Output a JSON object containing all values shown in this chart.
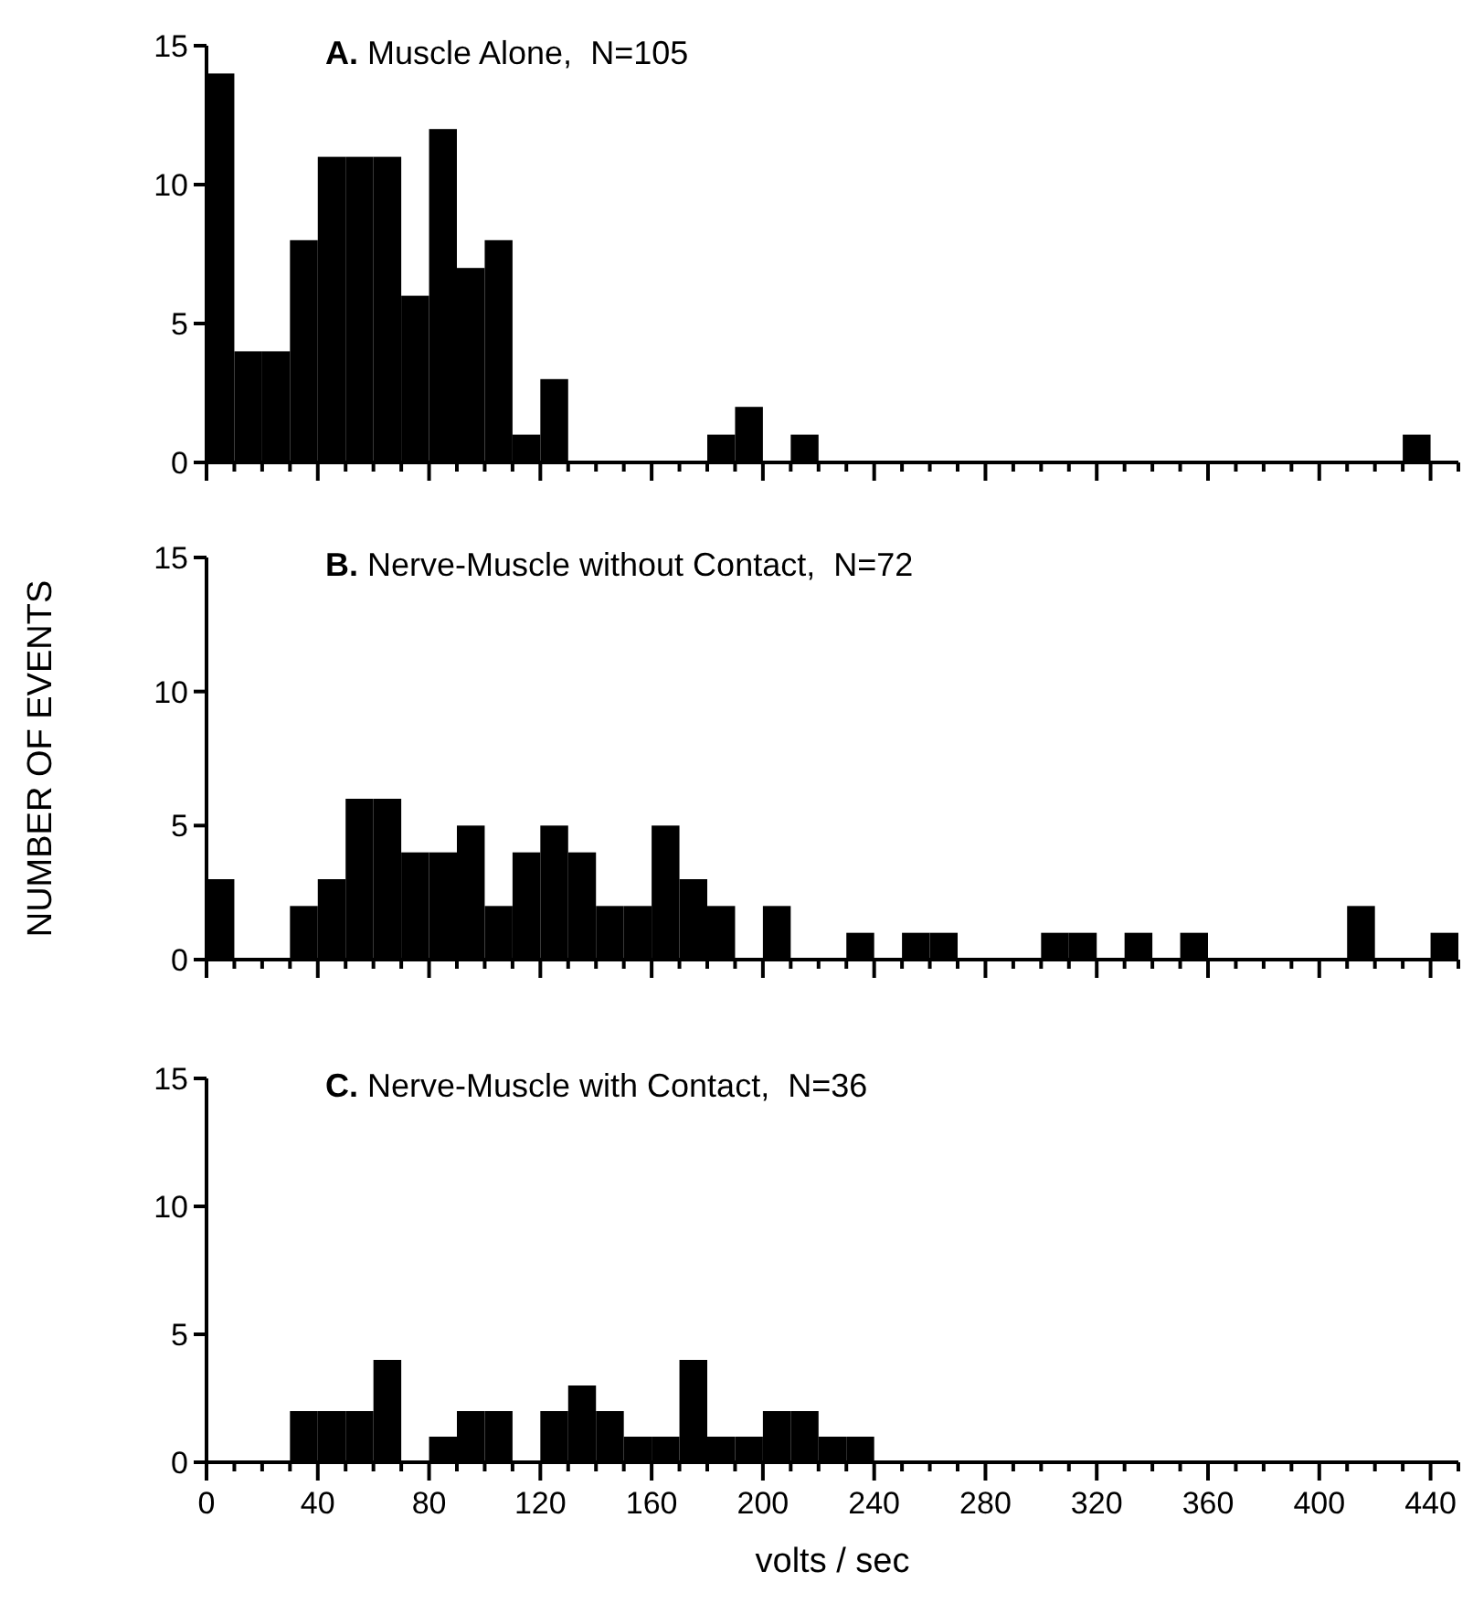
{
  "chart_data": [
    {
      "type": "histogram",
      "title": "A. Muscle Alone,  N=105",
      "color": "#000000",
      "bins": [
        0,
        10,
        20,
        30,
        40,
        50,
        60,
        70,
        80,
        90,
        100,
        110,
        120,
        130,
        140,
        150,
        160,
        170,
        180,
        190,
        200,
        210,
        220,
        230,
        240,
        250,
        260,
        270,
        280,
        290,
        300,
        310,
        320,
        330,
        340,
        350,
        360,
        370,
        380,
        390,
        400,
        410,
        420,
        430,
        440,
        450
      ],
      "values": [
        14,
        4,
        4,
        8,
        11,
        11,
        11,
        6,
        12,
        7,
        8,
        1,
        3,
        0,
        0,
        0,
        0,
        0,
        1,
        2,
        0,
        1,
        0,
        0,
        0,
        0,
        0,
        0,
        0,
        0,
        0,
        0,
        0,
        0,
        0,
        0,
        0,
        0,
        0,
        0,
        0,
        0,
        0,
        1,
        0
      ],
      "xlim": [
        0,
        450
      ],
      "ylim": [
        0,
        15
      ],
      "yticks": [
        0,
        5,
        10,
        15
      ],
      "xticks": [
        0,
        {
          "value": 10,
          "label": null
        },
        {
          "value": 20,
          "label": null
        },
        {
          "value": 30,
          "label": null
        },
        40,
        {
          "value": 50,
          "label": null
        },
        {
          "value": 60,
          "label": null
        },
        {
          "value": 70,
          "label": null
        },
        80,
        {
          "value": 90,
          "label": null
        },
        {
          "value": 100,
          "label": null
        },
        {
          "value": 110,
          "label": null
        },
        120,
        {
          "value": 130,
          "label": null
        },
        {
          "value": 140,
          "label": null
        },
        {
          "value": 150,
          "label": null
        },
        160,
        {
          "value": 170,
          "label": null
        },
        {
          "value": 180,
          "label": null
        },
        {
          "value": 190,
          "label": null
        },
        200,
        {
          "value": 210,
          "label": null
        },
        {
          "value": 220,
          "label": null
        },
        {
          "value": 230,
          "label": null
        },
        240,
        {
          "value": 250,
          "label": null
        },
        {
          "value": 260,
          "label": null
        },
        {
          "value": 270,
          "label": null
        },
        280,
        {
          "value": 290,
          "label": null
        },
        {
          "value": 300,
          "label": null
        },
        {
          "value": 310,
          "label": null
        },
        320,
        {
          "value": 330,
          "label": null
        },
        {
          "value": 340,
          "label": null
        },
        {
          "value": 350,
          "label": null
        },
        360,
        {
          "value": 370,
          "label": null
        },
        {
          "value": 380,
          "label": null
        },
        {
          "value": 390,
          "label": null
        },
        400,
        {
          "value": 410,
          "label": null
        },
        {
          "value": 420,
          "label": null
        },
        {
          "value": 430,
          "label": null
        },
        440,
        {
          "value": 450,
          "label": null
        }
      ],
      "tick_labels": "y"
    },
    {
      "type": "histogram",
      "title": "B. Nerve-Muscle without Contact,  N=72",
      "ylabel": "NUMBER OF EVENTS",
      "color": "#000000",
      "bins": [
        0,
        10,
        20,
        30,
        40,
        50,
        60,
        70,
        80,
        90,
        100,
        110,
        120,
        130,
        140,
        150,
        160,
        170,
        180,
        190,
        200,
        210,
        220,
        230,
        240,
        250,
        260,
        270,
        280,
        290,
        300,
        310,
        320,
        330,
        340,
        350,
        360,
        370,
        380,
        390,
        400,
        410,
        420,
        430,
        440,
        450
      ],
      "values": [
        3,
        0,
        0,
        2,
        3,
        6,
        6,
        4,
        4,
        5,
        2,
        4,
        5,
        4,
        2,
        2,
        5,
        3,
        2,
        0,
        2,
        0,
        0,
        1,
        0,
        1,
        1,
        0,
        0,
        0,
        1,
        1,
        0,
        1,
        0,
        1,
        0,
        0,
        0,
        0,
        0,
        2,
        0,
        0,
        1
      ],
      "xlim": [
        0,
        450
      ],
      "ylim": [
        0,
        15
      ],
      "yticks": [
        0,
        5,
        10,
        15
      ],
      "xticks": [
        0,
        {
          "value": 10,
          "label": null
        },
        {
          "value": 20,
          "label": null
        },
        {
          "value": 30,
          "label": null
        },
        40,
        {
          "value": 50,
          "label": null
        },
        {
          "value": 60,
          "label": null
        },
        {
          "value": 70,
          "label": null
        },
        80,
        {
          "value": 90,
          "label": null
        },
        {
          "value": 100,
          "label": null
        },
        {
          "value": 110,
          "label": null
        },
        120,
        {
          "value": 130,
          "label": null
        },
        {
          "value": 140,
          "label": null
        },
        {
          "value": 150,
          "label": null
        },
        160,
        {
          "value": 170,
          "label": null
        },
        {
          "value": 180,
          "label": null
        },
        {
          "value": 190,
          "label": null
        },
        200,
        {
          "value": 210,
          "label": null
        },
        {
          "value": 220,
          "label": null
        },
        {
          "value": 230,
          "label": null
        },
        240,
        {
          "value": 250,
          "label": null
        },
        {
          "value": 260,
          "label": null
        },
        {
          "value": 270,
          "label": null
        },
        280,
        {
          "value": 290,
          "label": null
        },
        {
          "value": 300,
          "label": null
        },
        {
          "value": 310,
          "label": null
        },
        320,
        {
          "value": 330,
          "label": null
        },
        {
          "value": 340,
          "label": null
        },
        {
          "value": 350,
          "label": null
        },
        360,
        {
          "value": 370,
          "label": null
        },
        {
          "value": 380,
          "label": null
        },
        {
          "value": 390,
          "label": null
        },
        400,
        {
          "value": 410,
          "label": null
        },
        {
          "value": 420,
          "label": null
        },
        {
          "value": 430,
          "label": null
        },
        440,
        {
          "value": 450,
          "label": null
        }
      ],
      "tick_labels": "y"
    },
    {
      "type": "histogram",
      "title": "C. Nerve-Muscle with Contact,  N=36",
      "xlabel": "volts / sec",
      "color": "#000000",
      "bins": [
        0,
        10,
        20,
        30,
        40,
        50,
        60,
        70,
        80,
        90,
        100,
        110,
        120,
        130,
        140,
        150,
        160,
        170,
        180,
        190,
        200,
        210,
        220,
        230,
        240,
        250,
        260,
        270,
        280,
        290,
        300,
        310,
        320,
        330,
        340,
        350,
        360,
        370,
        380,
        390,
        400,
        410,
        420,
        430,
        440,
        450
      ],
      "values": [
        0,
        0,
        0,
        2,
        2,
        2,
        4,
        0,
        1,
        2,
        2,
        0,
        2,
        3,
        2,
        1,
        1,
        4,
        1,
        1,
        2,
        2,
        1,
        1,
        0,
        0,
        0,
        0,
        0,
        0,
        0,
        0,
        0,
        0,
        0,
        0,
        0,
        0,
        0,
        0,
        0,
        0,
        0,
        0,
        0
      ],
      "xlim": [
        0,
        450
      ],
      "ylim": [
        0,
        15
      ],
      "yticks": [
        0,
        5,
        10,
        15
      ],
      "xticks": [
        0,
        {
          "value": 10,
          "label": null
        },
        {
          "value": 20,
          "label": null
        },
        {
          "value": 30,
          "label": null
        },
        40,
        {
          "value": 50,
          "label": null
        },
        {
          "value": 60,
          "label": null
        },
        {
          "value": 70,
          "label": null
        },
        80,
        {
          "value": 90,
          "label": null
        },
        {
          "value": 100,
          "label": null
        },
        {
          "value": 110,
          "label": null
        },
        120,
        {
          "value": 130,
          "label": null
        },
        {
          "value": 140,
          "label": null
        },
        {
          "value": 150,
          "label": null
        },
        160,
        {
          "value": 170,
          "label": null
        },
        {
          "value": 180,
          "label": null
        },
        {
          "value": 190,
          "label": null
        },
        200,
        {
          "value": 210,
          "label": null
        },
        {
          "value": 220,
          "label": null
        },
        {
          "value": 230,
          "label": null
        },
        240,
        {
          "value": 250,
          "label": null
        },
        {
          "value": 260,
          "label": null
        },
        {
          "value": 270,
          "label": null
        },
        280,
        {
          "value": 290,
          "label": null
        },
        {
          "value": 300,
          "label": null
        },
        {
          "value": 310,
          "label": null
        },
        320,
        {
          "value": 330,
          "label": null
        },
        {
          "value": 340,
          "label": null
        },
        {
          "value": 350,
          "label": null
        },
        360,
        {
          "value": 370,
          "label": null
        },
        {
          "value": 380,
          "label": null
        },
        {
          "value": 390,
          "label": null
        },
        400,
        {
          "value": 410,
          "label": null
        },
        {
          "value": 420,
          "label": null
        },
        {
          "value": 430,
          "label": null
        },
        440,
        {
          "value": 450,
          "label": null
        }
      ]
    }
  ]
}
